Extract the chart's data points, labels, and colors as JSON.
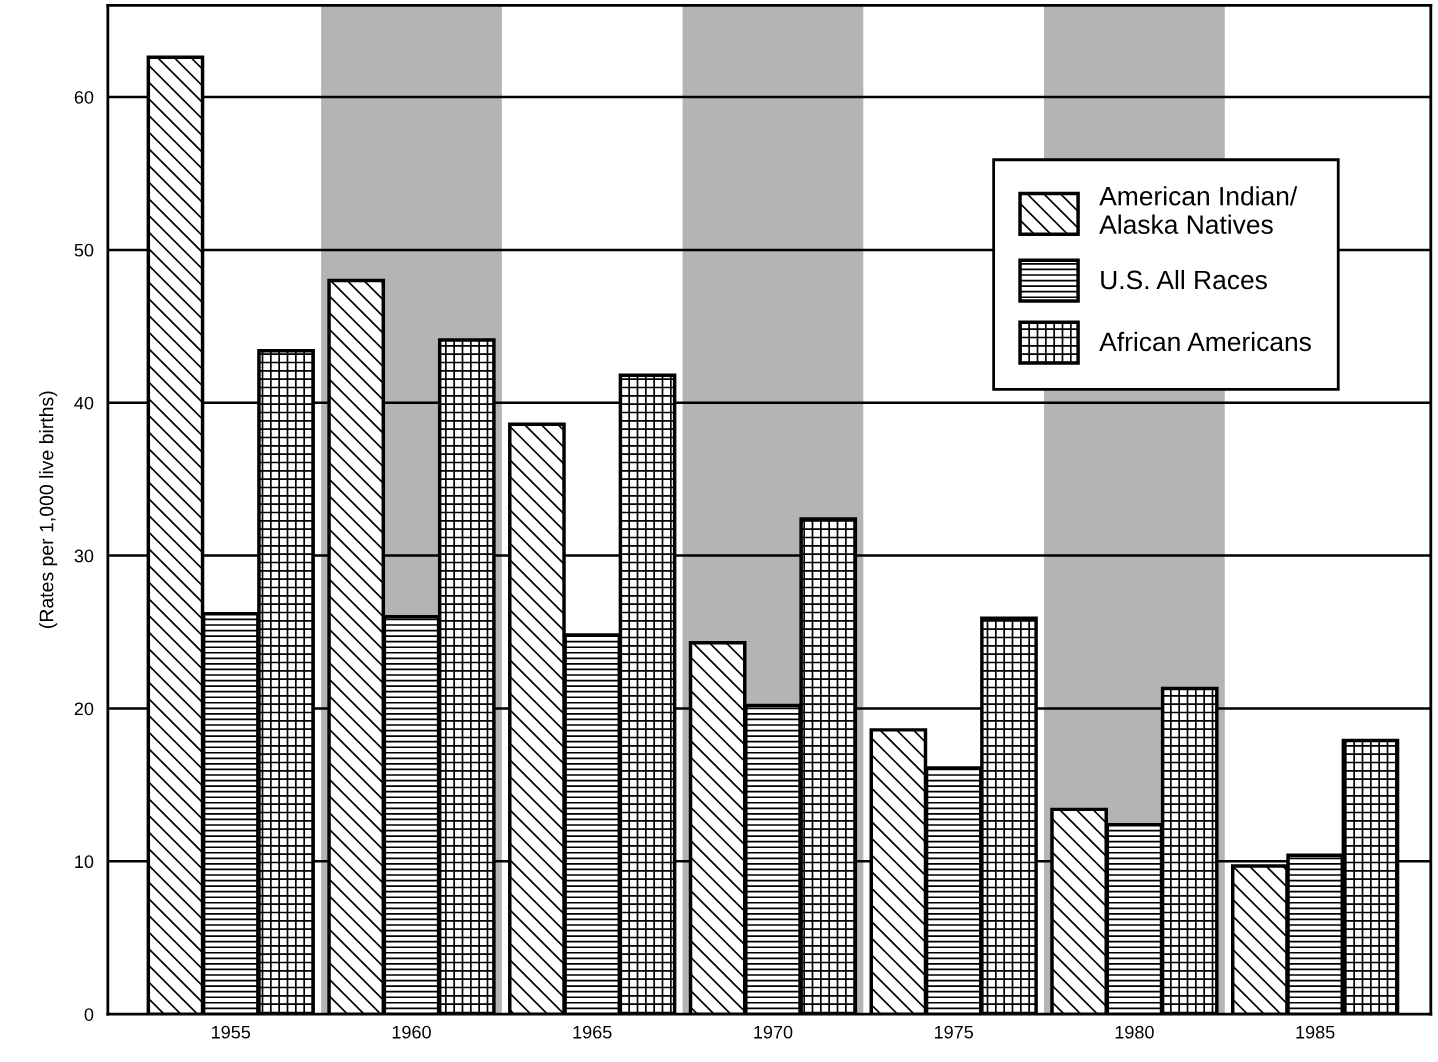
{
  "chart_data": {
    "type": "bar",
    "ylabel": "(Rates per 1,000 live births)",
    "x": [
      1955,
      1960,
      1965,
      1970,
      1975,
      1980,
      1985
    ],
    "xlim": [
      1951.6,
      1988.2
    ],
    "xticks": [
      1955,
      1960,
      1965,
      1970,
      1975,
      1980,
      1985
    ],
    "ylim": [
      0,
      66
    ],
    "yticks": [
      0,
      10,
      20,
      30,
      40,
      50,
      60
    ],
    "series": [
      {
        "name": "American Indian/\nAlaska Natives",
        "color": "#000000",
        "values": [
          62.6,
          48.0,
          38.6,
          24.3,
          18.6,
          13.4,
          9.7
        ]
      },
      {
        "name": "U.S. All Races",
        "color": "#000000",
        "values": [
          26.2,
          26.0,
          24.8,
          20.2,
          16.1,
          12.4,
          10.4
        ]
      },
      {
        "name": "African Americans",
        "color": "#000000",
        "values": [
          43.4,
          44.1,
          41.8,
          32.4,
          25.9,
          21.3,
          17.9
        ]
      }
    ],
    "bands": [
      {
        "axis": "x",
        "from": 1957.5,
        "to": 1962.5,
        "color": "#b4b4b4"
      },
      {
        "axis": "x",
        "from": 1967.5,
        "to": 1972.5,
        "color": "#b4b4b4"
      },
      {
        "axis": "x",
        "from": 1977.5,
        "to": 1982.5,
        "color": "#b4b4b4"
      }
    ],
    "grid": "y",
    "legend": "top right"
  }
}
